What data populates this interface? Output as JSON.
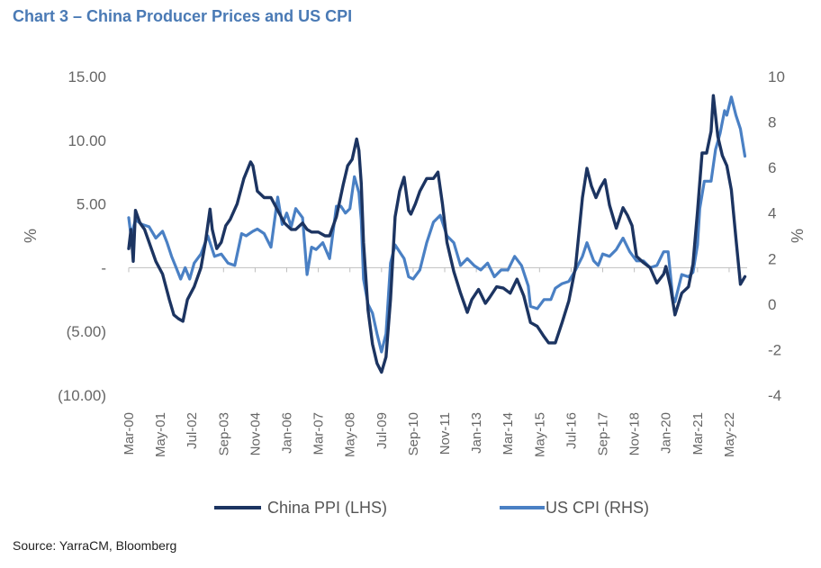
{
  "title": "Chart 3 – China Producer Prices and US CPI",
  "source": "Source: YarraCM, Bloomberg",
  "colors": {
    "title": "#4a7ab5",
    "ppi": "#1c3461",
    "cpi": "#4a80c4",
    "axis": "#bfbfbf",
    "text": "#666666"
  },
  "chart_data": {
    "type": "line",
    "ylabel_left": "%",
    "ylabel_right": "%",
    "ylim_left": [
      -10,
      15
    ],
    "ylim_right": [
      -4,
      10
    ],
    "left_ticks": [
      {
        "value": 15,
        "label": "15.00"
      },
      {
        "value": 10,
        "label": "10.00"
      },
      {
        "value": 5,
        "label": "5.00"
      },
      {
        "value": 0,
        "label": "-"
      },
      {
        "value": -5,
        "label": "(5.00)"
      },
      {
        "value": -10,
        "label": "(10.00)"
      }
    ],
    "right_ticks": [
      {
        "value": 10,
        "label": "10"
      },
      {
        "value": 8,
        "label": "8"
      },
      {
        "value": 6,
        "label": "6"
      },
      {
        "value": 4,
        "label": "4"
      },
      {
        "value": 2,
        "label": "2"
      },
      {
        "value": 0,
        "label": "0"
      },
      {
        "value": -2,
        "label": "-2"
      },
      {
        "value": -4,
        "label": "-4"
      }
    ],
    "x_ticks": [
      "Mar-00",
      "May-01",
      "Jul-02",
      "Sep-03",
      "Nov-04",
      "Jan-06",
      "Mar-07",
      "May-08",
      "Jul-09",
      "Sep-10",
      "Nov-11",
      "Jan-13",
      "Mar-14",
      "May-15",
      "Jul-16",
      "Sep-17",
      "Nov-18",
      "Jan-20",
      "Mar-21",
      "May-22"
    ],
    "x_range": [
      "2000-03",
      "2023-01"
    ],
    "legend_position": "bottom",
    "series": [
      {
        "name": "China PPI (LHS)",
        "axis": "left",
        "points": [
          [
            "2000-03",
            1.5
          ],
          [
            "2000-04",
            3
          ],
          [
            "2000-05",
            0.5
          ],
          [
            "2000-06",
            4.5
          ],
          [
            "2000-08",
            3.5
          ],
          [
            "2000-10",
            3
          ],
          [
            "2000-12",
            2
          ],
          [
            "2001-03",
            0.5
          ],
          [
            "2001-06",
            -0.5
          ],
          [
            "2001-09",
            -2.5
          ],
          [
            "2001-11",
            -3.7
          ],
          [
            "2002-01",
            -4
          ],
          [
            "2002-03",
            -4.2
          ],
          [
            "2002-05",
            -2.5
          ],
          [
            "2002-08",
            -1.5
          ],
          [
            "2002-11",
            0
          ],
          [
            "2003-01",
            2
          ],
          [
            "2003-03",
            4.6
          ],
          [
            "2003-04",
            3
          ],
          [
            "2003-06",
            1.5
          ],
          [
            "2003-08",
            2
          ],
          [
            "2003-10",
            3.3
          ],
          [
            "2003-12",
            3.8
          ],
          [
            "2004-03",
            5
          ],
          [
            "2004-06",
            7
          ],
          [
            "2004-09",
            8.3
          ],
          [
            "2004-10",
            8
          ],
          [
            "2004-12",
            6
          ],
          [
            "2005-03",
            5.5
          ],
          [
            "2005-06",
            5.5
          ],
          [
            "2005-09",
            4.5
          ],
          [
            "2005-12",
            3.5
          ],
          [
            "2006-03",
            3
          ],
          [
            "2006-05",
            3
          ],
          [
            "2006-08",
            3.5
          ],
          [
            "2006-10",
            3
          ],
          [
            "2006-12",
            2.8
          ],
          [
            "2007-03",
            2.8
          ],
          [
            "2007-06",
            2.5
          ],
          [
            "2007-08",
            2.5
          ],
          [
            "2007-11",
            4
          ],
          [
            "2008-02",
            6.5
          ],
          [
            "2008-04",
            8
          ],
          [
            "2008-06",
            8.5
          ],
          [
            "2008-08",
            10.1
          ],
          [
            "2008-09",
            9.2
          ],
          [
            "2008-10",
            6.6
          ],
          [
            "2008-11",
            2
          ],
          [
            "2009-01",
            -3.3
          ],
          [
            "2009-03",
            -6
          ],
          [
            "2009-05",
            -7.5
          ],
          [
            "2009-07",
            -8.2
          ],
          [
            "2009-09",
            -7
          ],
          [
            "2009-11",
            -2.5
          ],
          [
            "2010-01",
            4
          ],
          [
            "2010-03",
            6
          ],
          [
            "2010-05",
            7.1
          ],
          [
            "2010-07",
            4.5
          ],
          [
            "2010-08",
            4.2
          ],
          [
            "2010-10",
            5
          ],
          [
            "2010-12",
            6
          ],
          [
            "2011-03",
            7
          ],
          [
            "2011-06",
            7
          ],
          [
            "2011-08",
            7.5
          ],
          [
            "2011-10",
            5
          ],
          [
            "2011-12",
            2
          ],
          [
            "2012-03",
            -0.3
          ],
          [
            "2012-06",
            -2
          ],
          [
            "2012-09",
            -3.5
          ],
          [
            "2012-11",
            -2.5
          ],
          [
            "2013-02",
            -1.7
          ],
          [
            "2013-05",
            -2.8
          ],
          [
            "2013-07",
            -2.3
          ],
          [
            "2013-10",
            -1.5
          ],
          [
            "2014-01",
            -1.6
          ],
          [
            "2014-04",
            -2
          ],
          [
            "2014-07",
            -0.9
          ],
          [
            "2014-10",
            -2.2
          ],
          [
            "2015-01",
            -4.3
          ],
          [
            "2015-04",
            -4.6
          ],
          [
            "2015-07",
            -5.4
          ],
          [
            "2015-09",
            -5.9
          ],
          [
            "2015-12",
            -5.9
          ],
          [
            "2016-03",
            -4.3
          ],
          [
            "2016-06",
            -2.6
          ],
          [
            "2016-09",
            0.1
          ],
          [
            "2016-12",
            5.5
          ],
          [
            "2017-02",
            7.8
          ],
          [
            "2017-04",
            6.4
          ],
          [
            "2017-06",
            5.5
          ],
          [
            "2017-08",
            6.3
          ],
          [
            "2017-10",
            6.9
          ],
          [
            "2017-12",
            4.9
          ],
          [
            "2018-03",
            3.1
          ],
          [
            "2018-06",
            4.7
          ],
          [
            "2018-08",
            4.1
          ],
          [
            "2018-10",
            3.3
          ],
          [
            "2018-12",
            0.9
          ],
          [
            "2019-03",
            0.4
          ],
          [
            "2019-06",
            0
          ],
          [
            "2019-09",
            -1.2
          ],
          [
            "2019-12",
            -0.5
          ],
          [
            "2020-01",
            0.1
          ],
          [
            "2020-03",
            -1.5
          ],
          [
            "2020-05",
            -3.7
          ],
          [
            "2020-08",
            -2
          ],
          [
            "2020-11",
            -1.5
          ],
          [
            "2021-01",
            0.3
          ],
          [
            "2021-03",
            4.4
          ],
          [
            "2021-05",
            9
          ],
          [
            "2021-07",
            9
          ],
          [
            "2021-09",
            10.7
          ],
          [
            "2021-10",
            13.5
          ],
          [
            "2021-12",
            10.3
          ],
          [
            "2022-02",
            8.8
          ],
          [
            "2022-04",
            8
          ],
          [
            "2022-06",
            6.1
          ],
          [
            "2022-08",
            2.3
          ],
          [
            "2022-10",
            -1.3
          ],
          [
            "2022-12",
            -0.7
          ]
        ]
      },
      {
        "name": "US CPI (RHS)",
        "axis": "right",
        "points": [
          [
            "2000-03",
            3.8
          ],
          [
            "2000-04",
            3.0
          ],
          [
            "2000-06",
            3.7
          ],
          [
            "2000-09",
            3.5
          ],
          [
            "2000-12",
            3.4
          ],
          [
            "2001-03",
            2.9
          ],
          [
            "2001-06",
            3.2
          ],
          [
            "2001-08",
            2.7
          ],
          [
            "2001-10",
            2.1
          ],
          [
            "2001-12",
            1.6
          ],
          [
            "2002-02",
            1.1
          ],
          [
            "2002-04",
            1.6
          ],
          [
            "2002-06",
            1.1
          ],
          [
            "2002-08",
            1.8
          ],
          [
            "2002-11",
            2.2
          ],
          [
            "2003-02",
            3.0
          ],
          [
            "2003-05",
            2.1
          ],
          [
            "2003-08",
            2.2
          ],
          [
            "2003-11",
            1.8
          ],
          [
            "2004-02",
            1.7
          ],
          [
            "2004-05",
            3.1
          ],
          [
            "2004-07",
            3.0
          ],
          [
            "2004-10",
            3.2
          ],
          [
            "2004-12",
            3.3
          ],
          [
            "2005-03",
            3.1
          ],
          [
            "2005-06",
            2.5
          ],
          [
            "2005-09",
            4.7
          ],
          [
            "2005-11",
            3.5
          ],
          [
            "2006-01",
            4.0
          ],
          [
            "2006-03",
            3.4
          ],
          [
            "2006-05",
            4.2
          ],
          [
            "2006-08",
            3.8
          ],
          [
            "2006-10",
            1.3
          ],
          [
            "2006-12",
            2.5
          ],
          [
            "2007-02",
            2.4
          ],
          [
            "2007-05",
            2.7
          ],
          [
            "2007-08",
            2.0
          ],
          [
            "2007-11",
            4.3
          ],
          [
            "2008-01",
            4.3
          ],
          [
            "2008-03",
            4.0
          ],
          [
            "2008-05",
            4.2
          ],
          [
            "2008-07",
            5.6
          ],
          [
            "2008-09",
            4.9
          ],
          [
            "2008-10",
            3.7
          ],
          [
            "2008-11",
            1.1
          ],
          [
            "2009-01",
            0.0
          ],
          [
            "2009-03",
            -0.4
          ],
          [
            "2009-05",
            -1.3
          ],
          [
            "2009-07",
            -2.1
          ],
          [
            "2009-09",
            -1.3
          ],
          [
            "2009-11",
            1.8
          ],
          [
            "2010-01",
            2.6
          ],
          [
            "2010-03",
            2.3
          ],
          [
            "2010-05",
            2.0
          ],
          [
            "2010-07",
            1.2
          ],
          [
            "2010-09",
            1.1
          ],
          [
            "2010-12",
            1.5
          ],
          [
            "2011-03",
            2.7
          ],
          [
            "2011-06",
            3.6
          ],
          [
            "2011-09",
            3.9
          ],
          [
            "2011-12",
            3.0
          ],
          [
            "2012-03",
            2.7
          ],
          [
            "2012-06",
            1.7
          ],
          [
            "2012-09",
            2.0
          ],
          [
            "2012-12",
            1.7
          ],
          [
            "2013-03",
            1.5
          ],
          [
            "2013-06",
            1.8
          ],
          [
            "2013-09",
            1.2
          ],
          [
            "2013-12",
            1.5
          ],
          [
            "2014-03",
            1.5
          ],
          [
            "2014-06",
            2.1
          ],
          [
            "2014-09",
            1.7
          ],
          [
            "2014-12",
            0.8
          ],
          [
            "2015-01",
            -0.1
          ],
          [
            "2015-04",
            -0.2
          ],
          [
            "2015-07",
            0.2
          ],
          [
            "2015-10",
            0.2
          ],
          [
            "2015-12",
            0.7
          ],
          [
            "2016-03",
            0.9
          ],
          [
            "2016-06",
            1.0
          ],
          [
            "2016-09",
            1.5
          ],
          [
            "2016-12",
            2.1
          ],
          [
            "2017-02",
            2.7
          ],
          [
            "2017-05",
            1.9
          ],
          [
            "2017-07",
            1.7
          ],
          [
            "2017-09",
            2.2
          ],
          [
            "2017-12",
            2.1
          ],
          [
            "2018-03",
            2.4
          ],
          [
            "2018-06",
            2.9
          ],
          [
            "2018-09",
            2.3
          ],
          [
            "2018-12",
            1.9
          ],
          [
            "2019-03",
            1.9
          ],
          [
            "2019-06",
            1.6
          ],
          [
            "2019-09",
            1.7
          ],
          [
            "2019-12",
            2.3
          ],
          [
            "2020-02",
            2.3
          ],
          [
            "2020-04",
            0.3
          ],
          [
            "2020-05",
            0.1
          ],
          [
            "2020-08",
            1.3
          ],
          [
            "2020-11",
            1.2
          ],
          [
            "2021-01",
            1.4
          ],
          [
            "2021-03",
            2.6
          ],
          [
            "2021-04",
            4.2
          ],
          [
            "2021-06",
            5.4
          ],
          [
            "2021-09",
            5.4
          ],
          [
            "2021-11",
            6.8
          ],
          [
            "2022-01",
            7.5
          ],
          [
            "2022-03",
            8.5
          ],
          [
            "2022-04",
            8.3
          ],
          [
            "2022-06",
            9.1
          ],
          [
            "2022-08",
            8.3
          ],
          [
            "2022-10",
            7.7
          ],
          [
            "2022-12",
            6.5
          ]
        ]
      }
    ]
  }
}
